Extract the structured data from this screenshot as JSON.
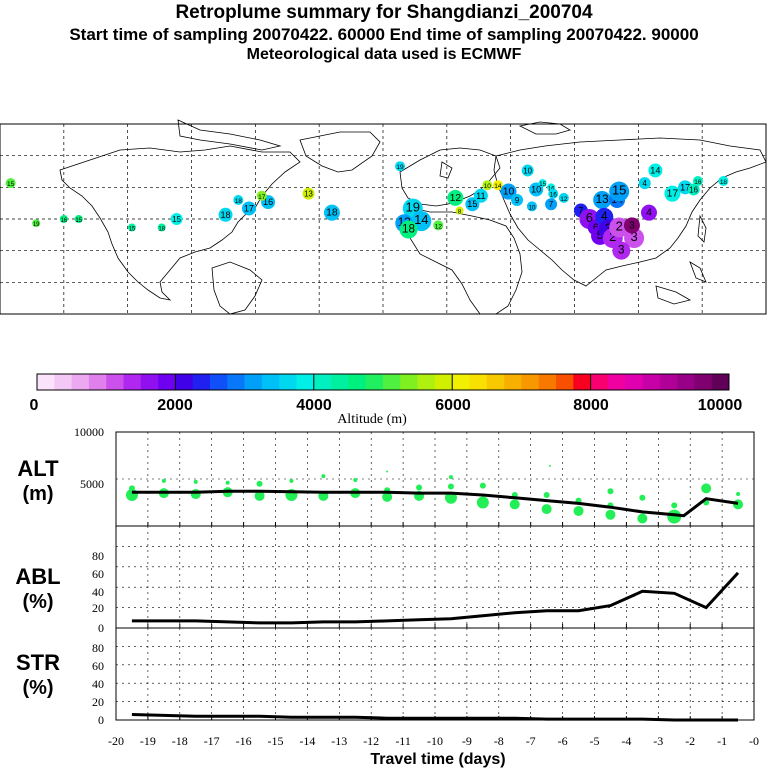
{
  "header": {
    "title": "Retroplume summary for Shangdianzi_200704",
    "line2": "Start time of sampling 20070422. 60000     End time of sampling 20070422. 90000",
    "line3": "Meteorological data used is ECMWF"
  },
  "colorbar": {
    "label": "Altitude (m)",
    "tick_labels": [
      "0",
      "2000",
      "4000",
      "6000",
      "8000",
      "10000"
    ],
    "colors": [
      "#fbe4fb",
      "#f4c8f4",
      "#eca8f0",
      "#e080ec",
      "#cc50ec",
      "#b028f0",
      "#9010f0",
      "#7000f0",
      "#4000e8",
      "#2020f0",
      "#1050f8",
      "#0878f8",
      "#00a0f8",
      "#00c0f8",
      "#00d8f0",
      "#00f0e8",
      "#00f0c0",
      "#00f0a0",
      "#00f080",
      "#20f060",
      "#50f040",
      "#80f020",
      "#b0f010",
      "#d0f000",
      "#f0f000",
      "#f8e000",
      "#f8c800",
      "#f8b000",
      "#f89800",
      "#f87800",
      "#f85000",
      "#f80020",
      "#f80070",
      "#f000a0",
      "#e000b0",
      "#c800a8",
      "#b00098",
      "#980088",
      "#800070",
      "#600058"
    ]
  },
  "map": {
    "altitude_labels": [
      {
        "text": "15",
        "lon": -175,
        "lat": 62,
        "alt": 5200,
        "r": 5
      },
      {
        "text": "19",
        "lon": -163,
        "lat": 43,
        "alt": 5000,
        "r": 4
      },
      {
        "text": "16",
        "lon": -150,
        "lat": 45,
        "alt": 4600,
        "r": 4
      },
      {
        "text": "15",
        "lon": -143,
        "lat": 45,
        "alt": 4700,
        "r": 4
      },
      {
        "text": "15",
        "lon": -118,
        "lat": 41,
        "alt": 4300,
        "r": 4
      },
      {
        "text": "18",
        "lon": -104,
        "lat": 41,
        "alt": 4400,
        "r": 4
      },
      {
        "text": "15",
        "lon": -97,
        "lat": 45,
        "alt": 3800,
        "r": 6
      },
      {
        "text": "18",
        "lon": -74,
        "lat": 47,
        "alt": 3600,
        "r": 7
      },
      {
        "text": "17",
        "lon": -63,
        "lat": 50,
        "alt": 3400,
        "r": 7
      },
      {
        "text": "18",
        "lon": -68,
        "lat": 54,
        "alt": 3600,
        "r": 5
      },
      {
        "text": "16",
        "lon": -54,
        "lat": 53,
        "alt": 3300,
        "r": 7
      },
      {
        "text": "17",
        "lon": -57,
        "lat": 56,
        "alt": 5300,
        "r": 5
      },
      {
        "text": "13",
        "lon": -35,
        "lat": 57,
        "alt": 5800,
        "r": 6
      },
      {
        "text": "18",
        "lon": -24,
        "lat": 48,
        "alt": 3300,
        "r": 8
      },
      {
        "text": "19",
        "lon": 8,
        "lat": 70,
        "alt": 3600,
        "r": 5
      },
      {
        "text": "19",
        "lon": 14,
        "lat": 50,
        "alt": 3500,
        "r": 10
      },
      {
        "text": "14",
        "lon": 18,
        "lat": 44,
        "alt": 3300,
        "r": 10
      },
      {
        "text": "13",
        "lon": 10,
        "lat": 43,
        "alt": 3200,
        "r": 9
      },
      {
        "text": "18",
        "lon": 12,
        "lat": 40,
        "alt": 4600,
        "r": 9
      },
      {
        "text": "12",
        "lon": 26,
        "lat": 42,
        "alt": 5200,
        "r": 5
      },
      {
        "text": "8",
        "lon": 36,
        "lat": 49,
        "alt": 5800,
        "r": 4
      },
      {
        "text": "12",
        "lon": 34,
        "lat": 55,
        "alt": 4500,
        "r": 8
      },
      {
        "text": "15",
        "lon": 42,
        "lat": 52,
        "alt": 3300,
        "r": 7
      },
      {
        "text": "11",
        "lon": 46,
        "lat": 56,
        "alt": 3700,
        "r": 7
      },
      {
        "text": "10",
        "lon": 49,
        "lat": 61,
        "alt": 5700,
        "r": 5
      },
      {
        "text": "14",
        "lon": 54,
        "lat": 61,
        "alt": 6000,
        "r": 5
      },
      {
        "text": "10",
        "lon": 59,
        "lat": 58,
        "alt": 3100,
        "r": 8
      },
      {
        "text": "10",
        "lon": 68,
        "lat": 68,
        "alt": 3500,
        "r": 6
      },
      {
        "text": "9",
        "lon": 63,
        "lat": 54,
        "alt": 3400,
        "r": 6
      },
      {
        "text": "10",
        "lon": 72,
        "lat": 59,
        "alt": 3400,
        "r": 7
      },
      {
        "text": "15",
        "lon": 75,
        "lat": 62,
        "alt": 3800,
        "r": 4
      },
      {
        "text": "16",
        "lon": 79,
        "lat": 60,
        "alt": 3900,
        "r": 4
      },
      {
        "text": "16",
        "lon": 80,
        "lat": 57,
        "alt": 3700,
        "r": 5
      },
      {
        "text": "10",
        "lon": 70,
        "lat": 51,
        "alt": 3300,
        "r": 5
      },
      {
        "text": "7",
        "lon": 79,
        "lat": 52,
        "alt": 3000,
        "r": 6
      },
      {
        "text": "12",
        "lon": 85,
        "lat": 55,
        "alt": 3600,
        "r": 5
      },
      {
        "text": "13",
        "lon": 103,
        "lat": 54,
        "alt": 3000,
        "r": 9
      },
      {
        "text": "14",
        "lon": 110,
        "lat": 54,
        "alt": 2800,
        "r": 8
      },
      {
        "text": "15",
        "lon": 111,
        "lat": 58,
        "alt": 3000,
        "r": 10
      },
      {
        "text": "7",
        "lon": 93,
        "lat": 49,
        "alt": 2400,
        "r": 7
      },
      {
        "text": "6",
        "lon": 97,
        "lat": 45,
        "alt": 1700,
        "r": 10
      },
      {
        "text": "6",
        "lon": 100,
        "lat": 41,
        "alt": 1900,
        "r": 8
      },
      {
        "text": "5",
        "lon": 102,
        "lat": 37,
        "alt": 1800,
        "r": 9
      },
      {
        "text": "4",
        "lon": 104,
        "lat": 46,
        "alt": 2300,
        "r": 9
      },
      {
        "text": "3",
        "lon": 106,
        "lat": 40,
        "alt": 2100,
        "r": 10
      },
      {
        "text": "2",
        "lon": 108,
        "lat": 36,
        "alt": 1400,
        "r": 10
      },
      {
        "text": "2",
        "lon": 111,
        "lat": 41,
        "alt": 1200,
        "r": 10
      },
      {
        "text": "3",
        "lon": 118,
        "lat": 36,
        "alt": 1200,
        "r": 10
      },
      {
        "text": "3",
        "lon": 117,
        "lat": 42,
        "alt": 9500,
        "r": 8
      },
      {
        "text": "3",
        "lon": 112,
        "lat": 30,
        "alt": 1300,
        "r": 9
      },
      {
        "text": "4",
        "lon": 125,
        "lat": 48,
        "alt": 1600,
        "r": 8
      },
      {
        "text": "4",
        "lon": 123,
        "lat": 62,
        "alt": 3700,
        "r": 6
      },
      {
        "text": "17",
        "lon": 136,
        "lat": 57,
        "alt": 3800,
        "r": 8
      },
      {
        "text": "17",
        "lon": 142,
        "lat": 60,
        "alt": 3700,
        "r": 7
      },
      {
        "text": "16",
        "lon": 146,
        "lat": 59,
        "alt": 4000,
        "r": 6
      },
      {
        "text": "16",
        "lon": 148,
        "lat": 63,
        "alt": 4100,
        "r": 5
      },
      {
        "text": "14",
        "lon": 128,
        "lat": 68,
        "alt": 3800,
        "r": 7
      },
      {
        "text": "18",
        "lon": 160,
        "lat": 63,
        "alt": 3900,
        "r": 5
      }
    ]
  },
  "chart_data": [
    {
      "type": "scatter",
      "title": "ALT",
      "ylabel": "ALT (m)",
      "xlabel": "Travel time (days)",
      "xlim": [
        -20,
        0
      ],
      "ylim": [
        0,
        10000
      ],
      "ytick_labels": [
        "5000",
        "10000"
      ],
      "xtick_labels": [
        "-20",
        "-19",
        "-18",
        "-17",
        "-16",
        "-15",
        "-14",
        "-13",
        "-12",
        "-11",
        "-10",
        "-9",
        "-8",
        "-7",
        "-6",
        "-5",
        "-4",
        "-3",
        "-2",
        "-1",
        "-0"
      ],
      "series": [
        {
          "name": "mean altitude",
          "x": [
            -19.5,
            -18.5,
            -17.5,
            -16.5,
            -15.5,
            -14.5,
            -13.5,
            -12.5,
            -11.5,
            -10.5,
            -9.5,
            -8.5,
            -7.5,
            -6.5,
            -5.5,
            -4.5,
            -3.5,
            -2.5,
            -2.2,
            -1.5,
            -0.5
          ],
          "y": [
            3600,
            3600,
            3600,
            3700,
            3700,
            3650,
            3600,
            3600,
            3600,
            3500,
            3500,
            3300,
            3000,
            2700,
            2400,
            2000,
            1500,
            1200,
            1100,
            2900,
            2400
          ]
        },
        {
          "name": "plume",
          "points": [
            [
              -19.5,
              4000,
              3
            ],
            [
              -19.5,
              3300,
              6
            ],
            [
              -18.5,
              4800,
              2
            ],
            [
              -18.5,
              3500,
              5
            ],
            [
              -17.5,
              4700,
              2
            ],
            [
              -17.5,
              3400,
              5
            ],
            [
              -16.5,
              4600,
              2
            ],
            [
              -16.5,
              3600,
              5
            ],
            [
              -15.5,
              4500,
              3
            ],
            [
              -15.5,
              3200,
              5
            ],
            [
              -14.5,
              4800,
              2
            ],
            [
              -14.5,
              3300,
              6
            ],
            [
              -13.5,
              5300,
              2
            ],
            [
              -13.5,
              3200,
              5
            ],
            [
              -12.5,
              4900,
              2
            ],
            [
              -12.5,
              3500,
              5
            ],
            [
              -11.5,
              5800,
              1
            ],
            [
              -11.5,
              3800,
              3
            ],
            [
              -11.5,
              3100,
              5
            ],
            [
              -10.5,
              4100,
              3
            ],
            [
              -10.5,
              3200,
              5
            ],
            [
              -9.5,
              5200,
              2
            ],
            [
              -9.5,
              4200,
              3
            ],
            [
              -9.5,
              3000,
              6
            ],
            [
              -8.5,
              4300,
              3
            ],
            [
              -8.5,
              2500,
              6
            ],
            [
              -7.5,
              3300,
              3
            ],
            [
              -7.5,
              2300,
              5
            ],
            [
              -6.5,
              3300,
              3
            ],
            [
              -6.5,
              1800,
              5
            ],
            [
              -5.5,
              2700,
              3
            ],
            [
              -5.5,
              1600,
              5
            ],
            [
              -4.5,
              3700,
              3
            ],
            [
              -4.5,
              2200,
              3
            ],
            [
              -4.5,
              1200,
              5
            ],
            [
              -3.5,
              3000,
              3
            ],
            [
              -3.5,
              800,
              5
            ],
            [
              -2.5,
              2200,
              3
            ],
            [
              -2.5,
              1000,
              7
            ],
            [
              -1.5,
              4000,
              5
            ],
            [
              -1.5,
              2500,
              3
            ],
            [
              -0.5,
              3400,
              2
            ],
            [
              -0.5,
              2300,
              5
            ],
            [
              -6.4,
              6400,
              1
            ]
          ]
        }
      ]
    },
    {
      "type": "line",
      "title": "ABL",
      "ylabel": "ABL (%)",
      "xlim": [
        -20,
        0
      ],
      "ylim": [
        0,
        100
      ],
      "ytick_labels": [
        "0",
        "20",
        "40",
        "60",
        "80"
      ],
      "series": [
        {
          "name": "ABL",
          "x": [
            -19.5,
            -18.5,
            -17.5,
            -16.5,
            -15.5,
            -14.5,
            -13.5,
            -12.5,
            -11.5,
            -10.5,
            -9.5,
            -8.5,
            -7.5,
            -6.5,
            -5.5,
            -4.5,
            -3.5,
            -2.5,
            -1.5,
            -0.5
          ],
          "y": [
            7,
            7,
            7,
            6,
            5,
            5,
            6,
            6,
            7,
            8,
            9,
            12,
            15,
            17,
            17,
            22,
            36,
            34,
            20,
            54
          ]
        }
      ]
    },
    {
      "type": "line",
      "title": "STR",
      "ylabel": "STR (%)",
      "xlim": [
        -20,
        0
      ],
      "ylim": [
        0,
        100
      ],
      "ytick_labels": [
        "0",
        "20",
        "40",
        "60",
        "80"
      ],
      "series": [
        {
          "name": "STR",
          "x": [
            -19.5,
            -18.5,
            -17.5,
            -16.5,
            -15.5,
            -14.5,
            -13.5,
            -12.5,
            -11.5,
            -10.5,
            -9.5,
            -8.5,
            -7.5,
            -6.5,
            -5.5,
            -4.5,
            -3.5,
            -2.5,
            -1.5,
            -0.5
          ],
          "y": [
            6,
            5,
            4,
            4,
            4,
            3,
            3,
            3,
            2,
            2,
            2,
            2,
            2,
            1,
            1,
            1,
            1,
            0,
            0,
            0
          ]
        }
      ]
    }
  ]
}
